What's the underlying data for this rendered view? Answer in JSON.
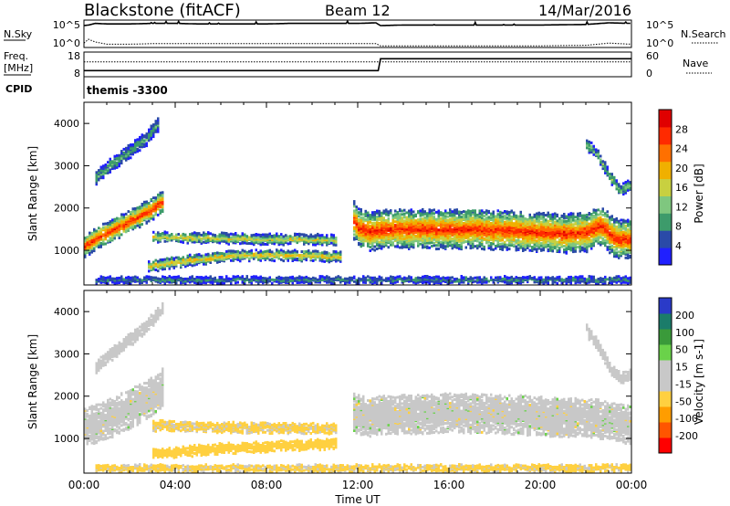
{
  "header": {
    "station": "Blackstone (fitACF)",
    "beam": "Beam 12",
    "date": "14/Mar/2016"
  },
  "top_panels": {
    "nsky_label": "N.Sky",
    "nsearch_label": "N.Search",
    "noise_ticks": [
      "10^5",
      "10^0"
    ],
    "freq_label_1": "Freq.",
    "freq_label_2": "[MHz]",
    "freq_ticks": [
      "18",
      "8"
    ],
    "nave_label": "Nave",
    "nave_ticks": [
      "60",
      "0"
    ],
    "cpid_label": "CPID",
    "cpid_value": "themis -3300"
  },
  "colors": {
    "power_scale": [
      "#2020ff",
      "#2a4aa8",
      "#3d9b6b",
      "#7fc77f",
      "#c8d040",
      "#f0b000",
      "#ff7000",
      "#ff2a00",
      "#e00000"
    ],
    "velocity_scale": [
      "#ff0000",
      "#ff5500",
      "#ff9d00",
      "#ffd040",
      "#c8c8c8",
      "#c8c8c8",
      "#6ad24a",
      "#3a9a3a",
      "#1b7c6a",
      "#2a3ac8"
    ],
    "gray": "#c8c8c8"
  },
  "chart_data": [
    {
      "type": "line",
      "panel": "noise",
      "series": [
        {
          "name": "N.Sky",
          "x_hours": [
            0,
            0.2,
            0.5,
            1,
            2,
            3,
            4,
            5,
            6,
            7,
            8,
            9,
            10,
            11,
            12,
            12.8,
            13,
            14,
            16,
            18,
            20,
            22,
            23,
            24
          ],
          "values": [
            4.0,
            4.1,
            4.4,
            4.3,
            4.3,
            4.4,
            4.4,
            4.3,
            4.3,
            4.3,
            4.3,
            4.4,
            4.4,
            4.4,
            4.4,
            4.5,
            4.0,
            4.1,
            4.1,
            4.1,
            4.1,
            4.2,
            4.5,
            4.4
          ]
        },
        {
          "name": "N.Search",
          "x_hours": [
            0,
            0.2,
            0.5,
            1,
            2,
            3,
            4,
            6,
            8,
            10,
            12,
            12.8,
            13,
            16,
            20,
            22,
            23,
            24
          ],
          "values": [
            0.8,
            1.5,
            1.0,
            0.6,
            0.6,
            0.7,
            0.7,
            0.7,
            0.7,
            0.7,
            0.7,
            0.7,
            0.3,
            0.3,
            0.3,
            0.4,
            0.8,
            0.6
          ]
        }
      ],
      "yscale": "log",
      "ylim": [
        0,
        5
      ]
    },
    {
      "type": "line",
      "panel": "frequency",
      "series": [
        {
          "name": "Freq.",
          "x_hours": [
            0,
            0.2,
            12.9,
            13.0,
            24
          ],
          "values": [
            10.5,
            10.5,
            10.5,
            15.3,
            15.3
          ]
        },
        {
          "name": "Nave",
          "x_hours": [
            0,
            24
          ],
          "values": [
            14,
            14
          ]
        }
      ],
      "ylim": [
        8,
        18
      ]
    },
    {
      "type": "heatmap",
      "panel": "power",
      "xlabel": "",
      "ylabel": "Slant Range [km]",
      "xlim": [
        0,
        24
      ],
      "ylim": [
        180,
        4500
      ],
      "yticks": [
        1000,
        2000,
        3000,
        4000
      ],
      "colorbar_label": "Power [dB]",
      "colorbar_ticks": [
        "4",
        "8",
        "12",
        "16",
        "20",
        "24",
        "28"
      ],
      "colorbar_range": [
        0,
        30
      ],
      "bands": [
        {
          "x_hours": [
            0.0,
            0.5,
            1.0,
            1.5,
            2.0,
            2.5,
            3.0,
            3.5
          ],
          "center_km": [
            1100,
            1280,
            1420,
            1560,
            1700,
            1850,
            2000,
            2200
          ],
          "width_km": 520,
          "peak_db": 26
        },
        {
          "x_hours": [
            0.5,
            1.2,
            2.0,
            2.7,
            3.3
          ],
          "center_km": [
            2700,
            3050,
            3350,
            3650,
            4050
          ],
          "width_km": 320,
          "peak_db": 10
        },
        {
          "x_hours": [
            2.8,
            4.5,
            6.5,
            8.5,
            10.5,
            11.2
          ],
          "center_km": [
            620,
            760,
            880,
            890,
            860,
            840
          ],
          "width_km": 240,
          "peak_db": 18
        },
        {
          "x_hours": [
            3.0,
            5.0,
            7.0,
            9.0,
            11.0
          ],
          "center_km": [
            1320,
            1300,
            1270,
            1260,
            1250
          ],
          "width_km": 230,
          "peak_db": 16
        },
        {
          "x_hours": [
            11.8,
            12.0,
            12.5,
            13.0,
            15.0,
            17.0,
            19.0,
            21.0,
            22.0,
            22.6,
            23.2,
            24.0
          ],
          "center_km": [
            1700,
            1550,
            1430,
            1500,
            1500,
            1500,
            1460,
            1400,
            1420,
            1600,
            1300,
            1250
          ],
          "width_km": 900,
          "peak_db": 26
        },
        {
          "x_hours": [
            22.0,
            22.5,
            23.0,
            23.5,
            24.0
          ],
          "center_km": [
            3500,
            3250,
            2750,
            2400,
            2600
          ],
          "width_km": 260,
          "peak_db": 12
        },
        {
          "x_hours": [
            0.5,
            4.0,
            8.0,
            12.0,
            16.0,
            20.0,
            24.0
          ],
          "center_km": [
            300,
            300,
            300,
            300,
            300,
            300,
            300
          ],
          "width_km": 150,
          "peak_db": 8
        }
      ]
    },
    {
      "type": "heatmap",
      "panel": "velocity",
      "xlabel": "Time UT",
      "ylabel": "Slant Range [km]",
      "xlim": [
        0,
        24
      ],
      "ylim": [
        180,
        4500
      ],
      "xticks": [
        "00:00",
        "04:00",
        "08:00",
        "12:00",
        "16:00",
        "20:00",
        "00:00"
      ],
      "yticks": [
        1000,
        2000,
        3000,
        4000
      ],
      "colorbar_label": "Velocity [m s-1]",
      "colorbar_ticks": [
        "-200",
        "-100",
        "-50",
        "-15",
        "15",
        "50",
        "100",
        "200"
      ],
      "colorbar_range": [
        -250,
        250
      ],
      "bands": [
        {
          "x_hours": [
            0.0,
            1.0,
            2.0,
            3.0,
            3.5
          ],
          "center_km": [
            1250,
            1450,
            1700,
            2000,
            2300
          ],
          "width_km": 900,
          "vel": 0
        },
        {
          "x_hours": [
            0.5,
            1.5,
            2.5,
            3.5
          ],
          "center_km": [
            2700,
            3150,
            3550,
            4100
          ],
          "width_km": 300,
          "vel": -30
        },
        {
          "x_hours": [
            3.0,
            5.0,
            7.0,
            9.0,
            11.0
          ],
          "center_km": [
            1310,
            1290,
            1260,
            1250,
            1240
          ],
          "width_km": 250,
          "vel": -60
        },
        {
          "x_hours": [
            3.0,
            6.0,
            9.0,
            11.0
          ],
          "center_km": [
            640,
            760,
            830,
            860
          ],
          "width_km": 230,
          "vel": -80
        },
        {
          "x_hours": [
            11.8,
            12.5,
            13.0,
            16.0,
            19.0,
            21.0,
            22.0,
            23.0,
            24.0
          ],
          "center_km": [
            1600,
            1500,
            1550,
            1600,
            1550,
            1500,
            1500,
            1400,
            1300
          ],
          "width_km": 900,
          "vel": 0
        },
        {
          "x_hours": [
            22.0,
            22.5,
            23.0,
            23.5,
            24.0
          ],
          "center_km": [
            3550,
            3200,
            2700,
            2400,
            2550
          ],
          "width_km": 260,
          "vel": 30
        },
        {
          "x_hours": [
            0.5,
            4.0,
            8.0,
            12.0,
            16.0,
            20.0,
            24.0
          ],
          "center_km": [
            300,
            300,
            300,
            300,
            300,
            300,
            300
          ],
          "width_km": 150,
          "vel": -60
        }
      ]
    }
  ]
}
